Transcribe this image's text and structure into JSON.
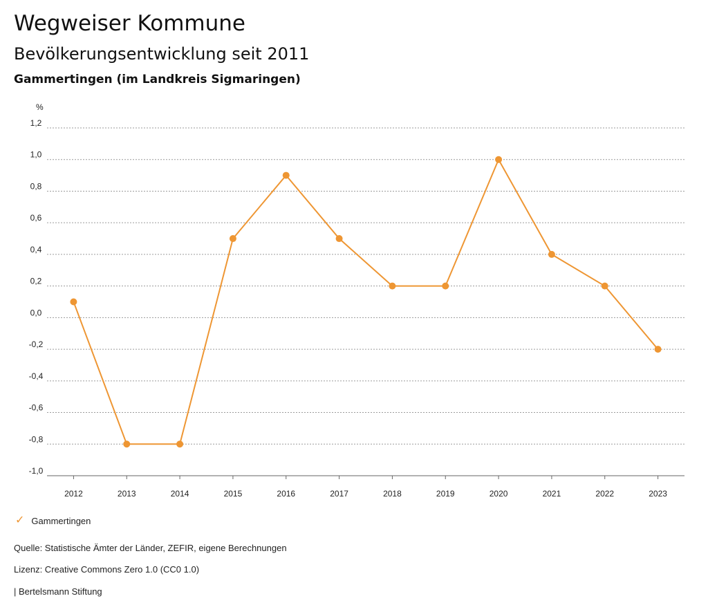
{
  "header": {
    "title": "Wegweiser Kommune",
    "subtitle": "Bevölkerungsentwicklung seit 2011",
    "region": "Gammertingen (im Landkreis Sigmaringen)"
  },
  "chart_data": {
    "type": "line",
    "title": "Bevölkerungsentwicklung seit 2011",
    "ylabel": "%",
    "xlabel": "",
    "x": [
      "2012",
      "2013",
      "2014",
      "2015",
      "2016",
      "2017",
      "2018",
      "2019",
      "2020",
      "2021",
      "2022",
      "2023"
    ],
    "series": [
      {
        "name": "Gammertingen",
        "values": [
          0.1,
          -0.8,
          -0.8,
          0.5,
          0.9,
          0.5,
          0.2,
          0.2,
          1.0,
          0.4,
          0.2,
          -0.2
        ]
      }
    ],
    "ylim": [
      -1.0,
      1.2
    ],
    "yticks": [
      1.2,
      1.0,
      0.8,
      0.6,
      0.4,
      0.2,
      0.0,
      -0.2,
      -0.4,
      -0.6,
      -0.8,
      -1.0
    ],
    "ytick_labels": [
      "1,2",
      "1,0",
      "0,8",
      "0,6",
      "0,4",
      "0,2",
      "0,0",
      "-0,2",
      "-0,4",
      "-0,6",
      "-0,8",
      "-1,0"
    ],
    "grid": true,
    "legend": "bottom-left",
    "color": "#ee9633"
  },
  "legend": {
    "label": "Gammertingen",
    "icon": "check-icon"
  },
  "footer": {
    "source": "Quelle: Statistische Ämter der Länder, ZEFIR, eigene Berechnungen",
    "license": "Lizenz: Creative Commons Zero 1.0 (CC0 1.0)",
    "brand": "| Bertelsmann Stiftung"
  }
}
